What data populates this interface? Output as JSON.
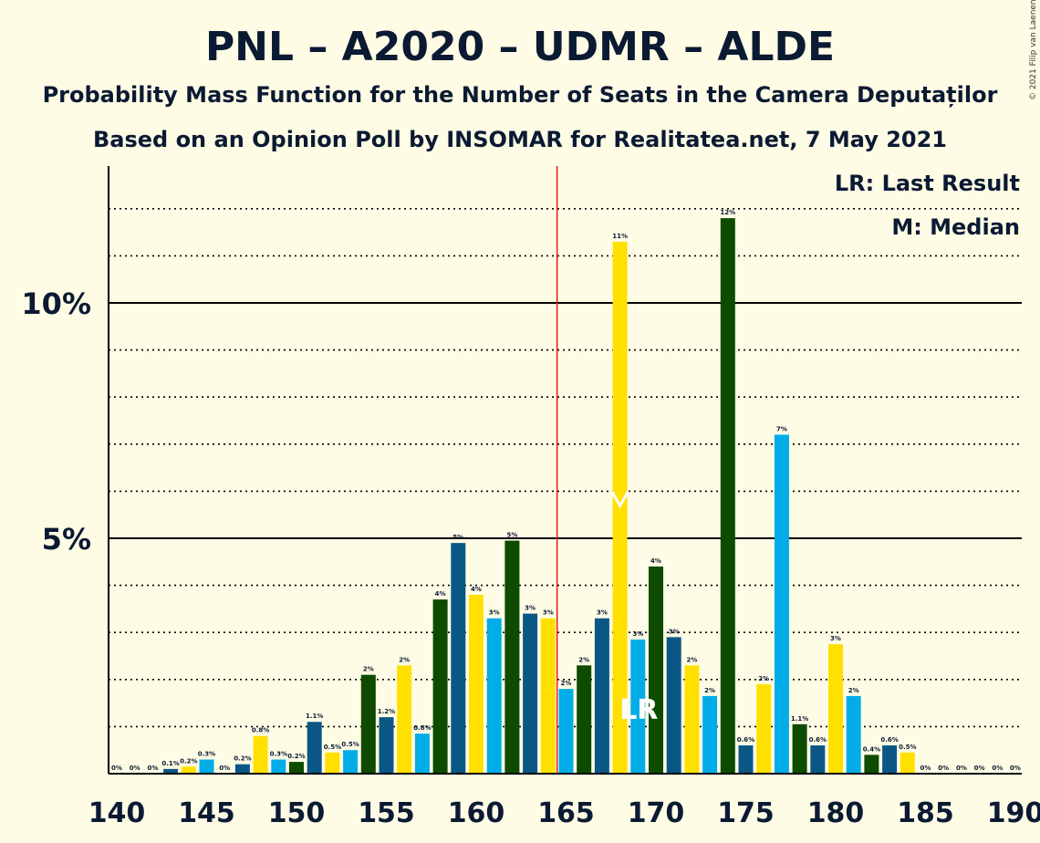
{
  "chart_data": {
    "type": "bar",
    "title": "PNL – A2020 – UDMR – ALDE",
    "subtitle1": "Probability Mass Function for the Number of Seats in the Camera Deputaților",
    "subtitle2": "Based on an Opinion Poll by INSOMAR for Realitatea.net, 7 May 2021",
    "copyright": "© 2021 Filip van Laenen",
    "legend": {
      "lr": "LR: Last Result",
      "m": "M: Median",
      "position": "top-right"
    },
    "x_ticks": [
      "140",
      "145",
      "150",
      "155",
      "160",
      "165",
      "170",
      "175",
      "180",
      "185",
      "190"
    ],
    "y_ticks": [
      {
        "value": 5,
        "label": "5%"
      },
      {
        "value": 10,
        "label": "10%"
      }
    ],
    "ylim": [
      0,
      12.8
    ],
    "xlim": [
      140,
      190
    ],
    "grid": true,
    "last_result": {
      "seats": 165,
      "marker_seats": 169,
      "label": "LR"
    },
    "median": {
      "seats": 168,
      "label": "M"
    },
    "colors": {
      "dark_green": "#0E4A00",
      "dark_blue": "#0A5786",
      "light_blue": "#00ADE9",
      "yellow": "#FFE000",
      "lr_line": "#E8161C"
    },
    "bars": [
      {
        "x": 140,
        "v": 0.0,
        "label": "0%",
        "c": "light_blue"
      },
      {
        "x": 141,
        "v": 0.0,
        "label": "0%",
        "c": "yellow"
      },
      {
        "x": 142,
        "v": 0.0,
        "label": "0%",
        "c": "dark_green"
      },
      {
        "x": 143,
        "v": 0.1,
        "label": "0.1%",
        "c": "dark_blue"
      },
      {
        "x": 144,
        "v": 0.15,
        "label": "0.2%",
        "c": "yellow"
      },
      {
        "x": 145,
        "v": 0.3,
        "label": "0.3%",
        "c": "light_blue"
      },
      {
        "x": 146,
        "v": 0.0,
        "label": "0%",
        "c": "dark_green"
      },
      {
        "x": 147,
        "v": 0.2,
        "label": "0.2%",
        "c": "dark_blue"
      },
      {
        "x": 148,
        "v": 0.8,
        "label": "0.8%",
        "c": "yellow"
      },
      {
        "x": 149,
        "v": 0.3,
        "label": "0.3%",
        "c": "light_blue"
      },
      {
        "x": 150,
        "v": 0.25,
        "label": "0.2%",
        "c": "dark_green"
      },
      {
        "x": 151,
        "v": 1.1,
        "label": "1.1%",
        "c": "dark_blue"
      },
      {
        "x": 152,
        "v": 0.45,
        "label": "0.5%",
        "c": "yellow"
      },
      {
        "x": 153,
        "v": 0.5,
        "label": "0.5%",
        "c": "light_blue"
      },
      {
        "x": 154,
        "v": 2.1,
        "label": "2%",
        "c": "dark_green"
      },
      {
        "x": 155,
        "v": 1.2,
        "label": "1.2%",
        "c": "dark_blue"
      },
      {
        "x": 156,
        "v": 2.3,
        "label": "2%",
        "c": "yellow"
      },
      {
        "x": 157,
        "v": 0.85,
        "label": "0.8%",
        "c": "light_blue"
      },
      {
        "x": 158,
        "v": 3.7,
        "label": "4%",
        "c": "dark_green"
      },
      {
        "x": 159,
        "v": 4.9,
        "label": "5%",
        "c": "dark_blue"
      },
      {
        "x": 160,
        "v": 3.8,
        "label": "4%",
        "c": "yellow"
      },
      {
        "x": 161,
        "v": 3.3,
        "label": "3%",
        "c": "light_blue"
      },
      {
        "x": 162,
        "v": 4.95,
        "label": "5%",
        "c": "dark_green"
      },
      {
        "x": 163,
        "v": 3.4,
        "label": "3%",
        "c": "dark_blue"
      },
      {
        "x": 164,
        "v": 3.3,
        "label": "3%",
        "c": "yellow"
      },
      {
        "x": 165,
        "v": 1.8,
        "label": "2%",
        "c": "light_blue"
      },
      {
        "x": 166,
        "v": 2.3,
        "label": "2%",
        "c": "dark_green"
      },
      {
        "x": 167,
        "v": 3.3,
        "label": "3%",
        "c": "dark_blue"
      },
      {
        "x": 168,
        "v": 11.3,
        "label": "11%",
        "c": "yellow"
      },
      {
        "x": 169,
        "v": 2.85,
        "label": "3%",
        "c": "light_blue"
      },
      {
        "x": 170,
        "v": 4.4,
        "label": "4%",
        "c": "dark_green"
      },
      {
        "x": 171,
        "v": 2.9,
        "label": "3%",
        "c": "dark_blue"
      },
      {
        "x": 172,
        "v": 2.3,
        "label": "2%",
        "c": "yellow"
      },
      {
        "x": 173,
        "v": 1.65,
        "label": "2%",
        "c": "light_blue"
      },
      {
        "x": 174,
        "v": 11.8,
        "label": "12%",
        "c": "dark_green"
      },
      {
        "x": 175,
        "v": 0.6,
        "label": "0.6%",
        "c": "dark_blue"
      },
      {
        "x": 176,
        "v": 1.9,
        "label": "2%",
        "c": "yellow"
      },
      {
        "x": 177,
        "v": 7.2,
        "label": "7%",
        "c": "light_blue"
      },
      {
        "x": 178,
        "v": 1.05,
        "label": "1.1%",
        "c": "dark_green"
      },
      {
        "x": 179,
        "v": 0.6,
        "label": "0.6%",
        "c": "dark_blue"
      },
      {
        "x": 180,
        "v": 2.75,
        "label": "3%",
        "c": "yellow"
      },
      {
        "x": 181,
        "v": 1.65,
        "label": "2%",
        "c": "light_blue"
      },
      {
        "x": 182,
        "v": 0.4,
        "label": "0.4%",
        "c": "dark_green"
      },
      {
        "x": 183,
        "v": 0.6,
        "label": "0.6%",
        "c": "dark_blue"
      },
      {
        "x": 184,
        "v": 0.45,
        "label": "0.5%",
        "c": "yellow"
      },
      {
        "x": 185,
        "v": 0.0,
        "label": "0%",
        "c": "light_blue"
      },
      {
        "x": 186,
        "v": 0.0,
        "label": "0%",
        "c": "dark_green"
      },
      {
        "x": 187,
        "v": 0.0,
        "label": "0%",
        "c": "dark_blue"
      },
      {
        "x": 188,
        "v": 0.0,
        "label": "0%",
        "c": "yellow"
      },
      {
        "x": 189,
        "v": 0.0,
        "label": "0%",
        "c": "light_blue"
      },
      {
        "x": 190,
        "v": 0.0,
        "label": "0%",
        "c": "dark_green"
      }
    ]
  }
}
